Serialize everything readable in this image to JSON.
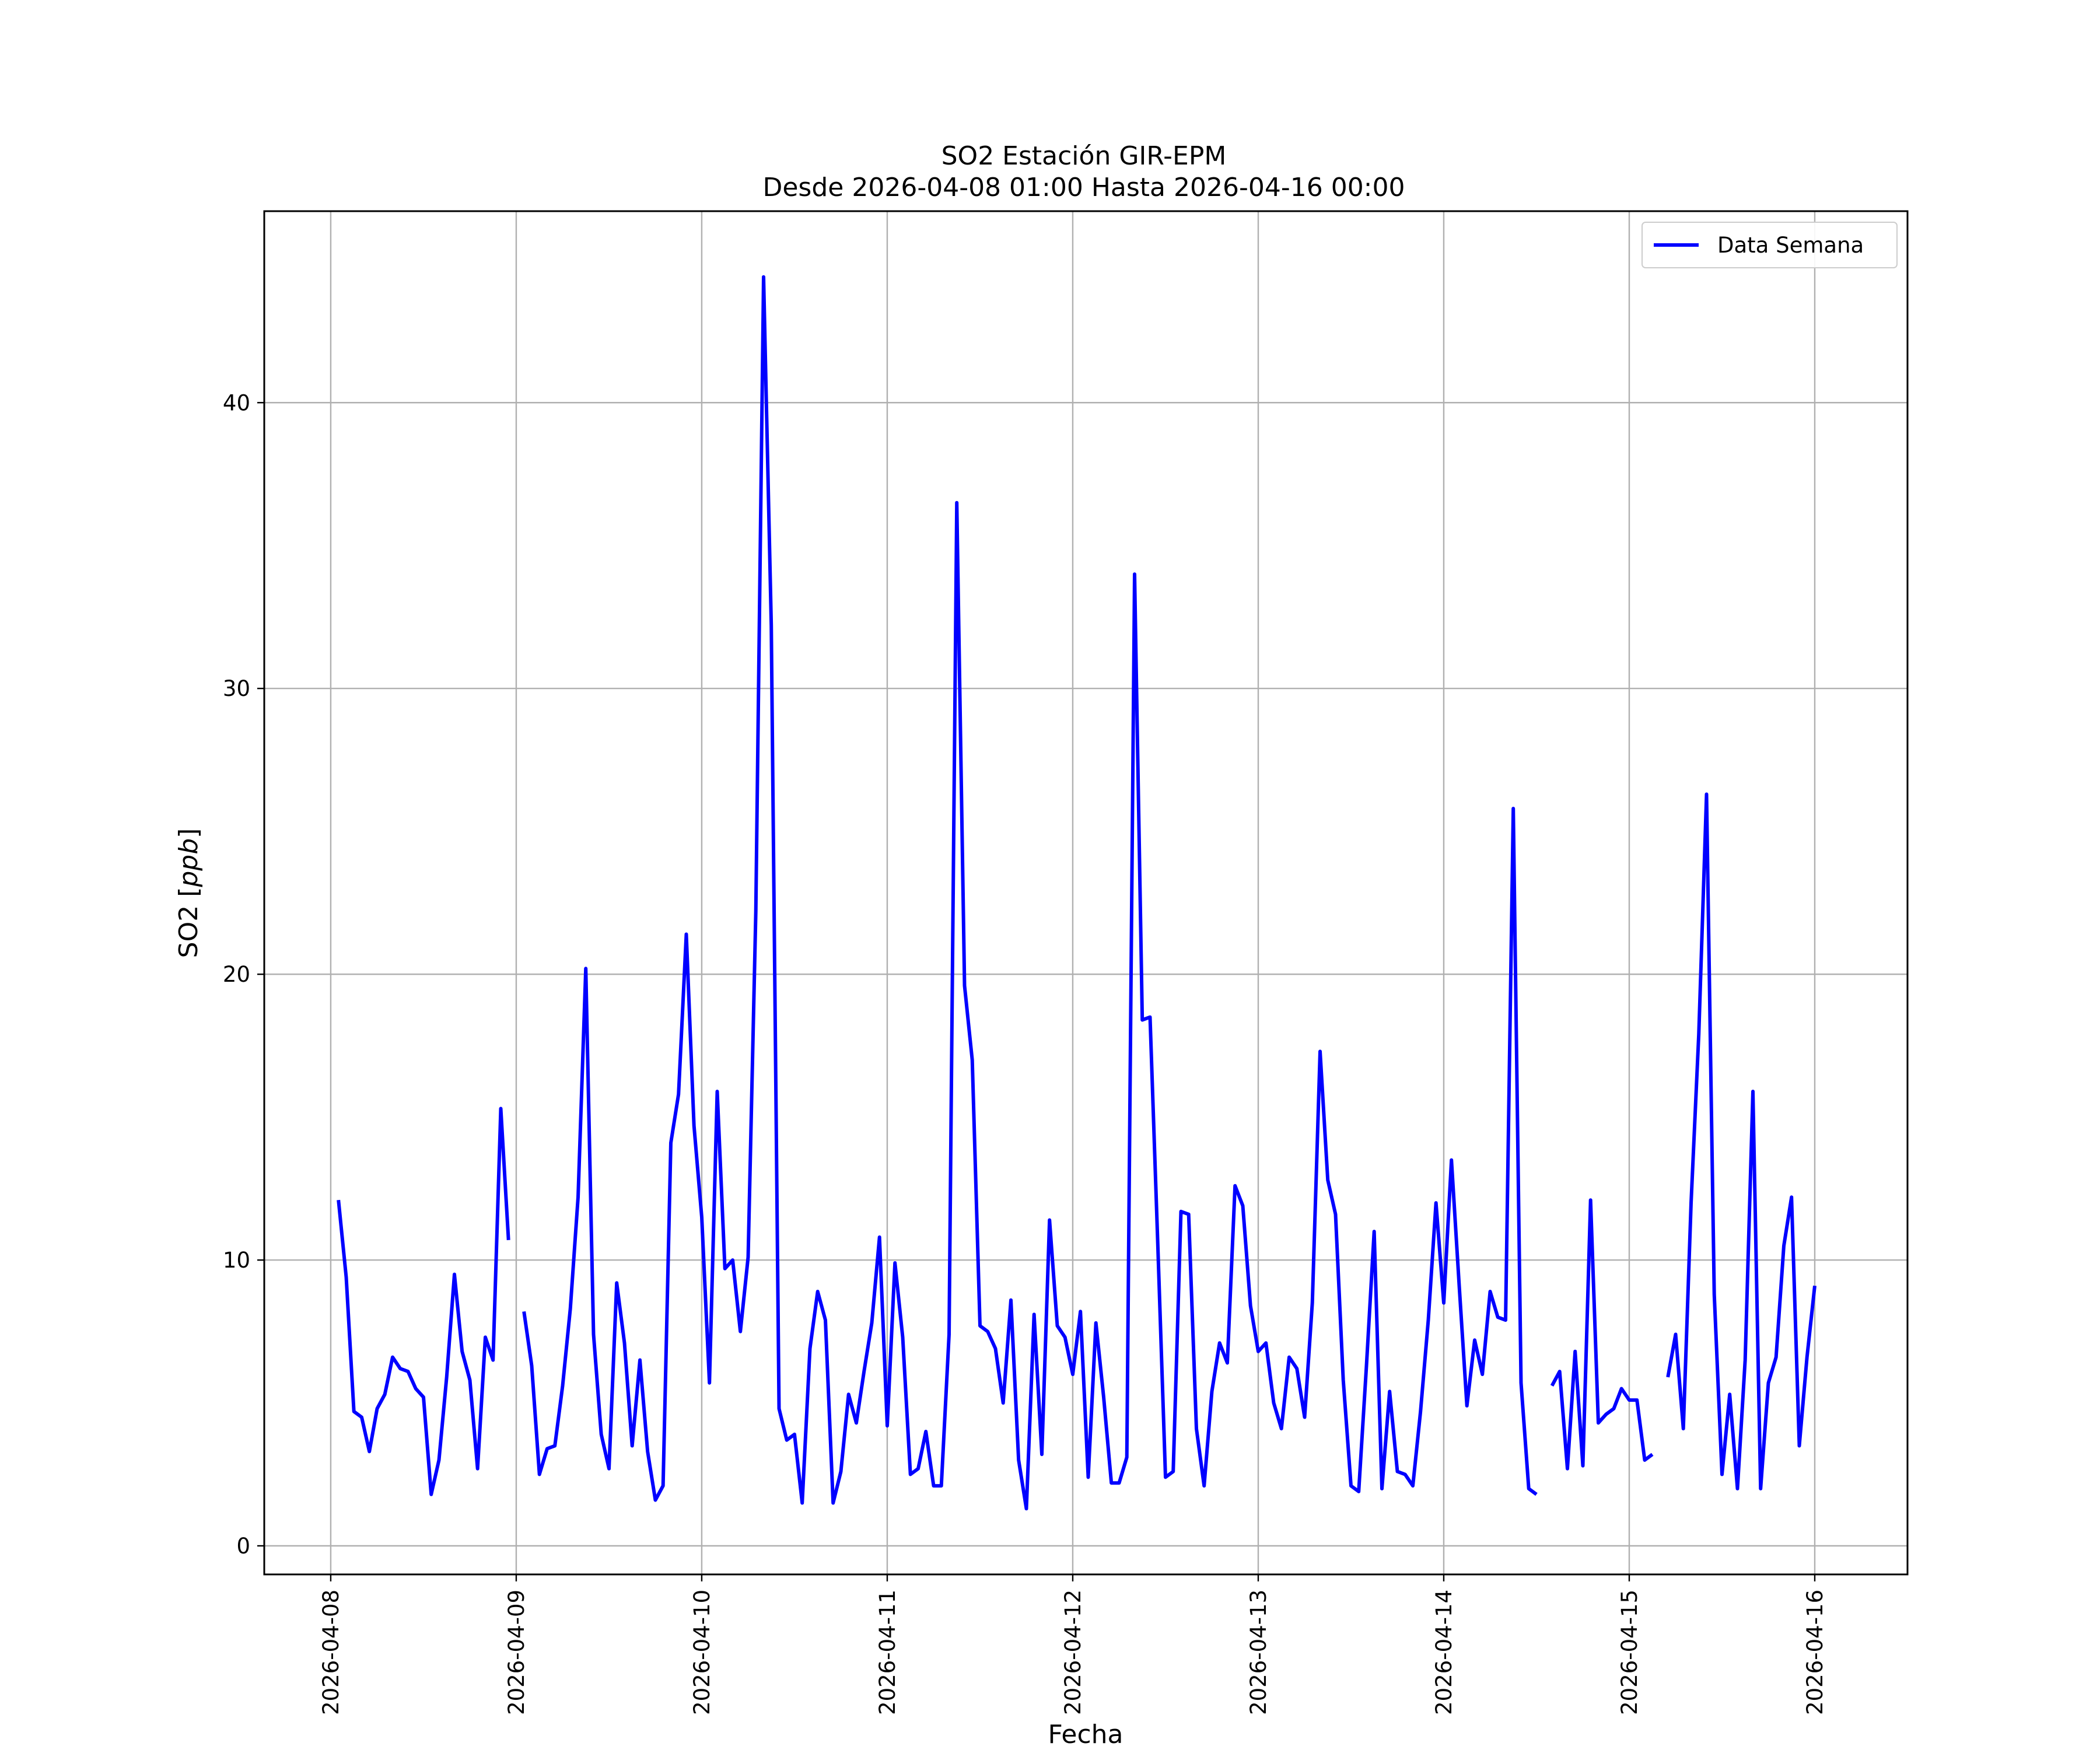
{
  "chart_data": {
    "type": "line",
    "title": "SO2 Estación GIR-EPM",
    "subtitle": "Desde 2026-04-08 01:00 Hasta 2026-04-16 00:00",
    "xlabel": "Fecha",
    "ylabel_main": "SO2 [",
    "ylabel_unit": "ppb",
    "ylabel_end": "]",
    "x_start": "2026-04-08 01:00",
    "x_end": "2026-04-16 00:00",
    "xlim": [
      "2026-04-07 15:24",
      "2026-04-16 12:00"
    ],
    "ylim": [
      -1.0,
      46.7
    ],
    "yticks": [
      0,
      10,
      20,
      30,
      40
    ],
    "xtick_labels": [
      "2026-04-08",
      "2026-04-09",
      "2026-04-10",
      "2026-04-11",
      "2026-04-12",
      "2026-04-13",
      "2026-04-14",
      "2026-04-15",
      "2026-04-16"
    ],
    "grid": true,
    "legend_position": "top-right",
    "colors": {
      "series": "#0000ff",
      "grid": "#b0b0b0",
      "axes": "#000000"
    },
    "series": [
      {
        "name": "Data Semana",
        "x_start": "2026-04-08 01:00",
        "x_step_hours": 1,
        "values": [
          12.1,
          9.4,
          4.7,
          4.5,
          3.3,
          4.8,
          5.3,
          6.6,
          6.2,
          6.1,
          5.5,
          5.2,
          1.8,
          3.0,
          5.9,
          9.5,
          6.8,
          5.8,
          2.7,
          7.3,
          6.5,
          15.3,
          10.7,
          null,
          8.2,
          6.3,
          2.5,
          3.4,
          3.5,
          5.6,
          8.3,
          12.2,
          20.2,
          7.4,
          3.9,
          2.7,
          9.2,
          7.1,
          3.5,
          6.5,
          3.3,
          1.6,
          2.1,
          14.1,
          15.8,
          21.4,
          14.7,
          11.5,
          5.7,
          15.9,
          9.7,
          10.0,
          7.5,
          10.1,
          22.2,
          44.4,
          32.2,
          4.8,
          3.7,
          3.9,
          1.5,
          6.9,
          8.9,
          7.9,
          1.5,
          2.6,
          5.3,
          4.3,
          6.1,
          7.8,
          10.8,
          4.2,
          9.9,
          7.3,
          2.5,
          2.7,
          4.0,
          2.1,
          2.1,
          7.4,
          36.5,
          19.6,
          17.0,
          7.7,
          7.5,
          6.9,
          5.0,
          8.6,
          3.0,
          1.3,
          8.1,
          3.2,
          11.4,
          7.7,
          7.3,
          6.0,
          8.2,
          2.4,
          7.8,
          5.2,
          2.2,
          2.2,
          3.1,
          34.0,
          18.4,
          18.5,
          10.6,
          2.4,
          2.6,
          11.7,
          11.6,
          4.1,
          2.1,
          5.4,
          7.1,
          6.4,
          12.6,
          11.9,
          8.4,
          6.8,
          7.1,
          5.0,
          4.1,
          6.6,
          6.2,
          4.5,
          8.5,
          17.3,
          12.8,
          11.6,
          5.8,
          2.1,
          1.9,
          6.3,
          11.0,
          2.0,
          5.4,
          2.6,
          2.5,
          2.1,
          4.7,
          7.9,
          12.0,
          8.5,
          13.5,
          9.1,
          4.9,
          7.2,
          6.0,
          8.9,
          8.0,
          7.9,
          25.8,
          5.7,
          2.0,
          1.8,
          null,
          5.6,
          6.1,
          2.7,
          6.8,
          2.8,
          12.1,
          4.3,
          4.6,
          4.8,
          5.5,
          5.1,
          5.1,
          3.0,
          3.2,
          null,
          5.9,
          7.4,
          4.1,
          12.0,
          17.9,
          26.3,
          8.8,
          2.5,
          5.3,
          2.0,
          6.5,
          15.9,
          2.0,
          5.7,
          6.6,
          10.5,
          12.2,
          3.5,
          6.6,
          9.1
        ]
      }
    ]
  }
}
